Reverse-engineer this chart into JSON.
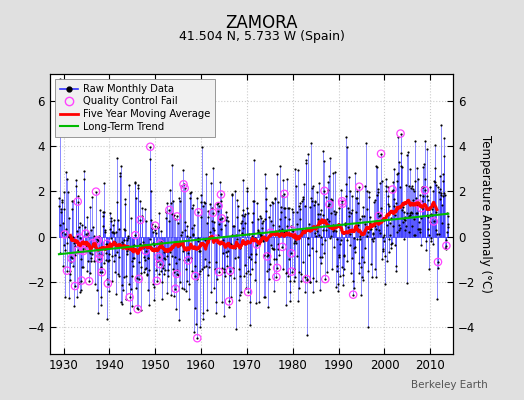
{
  "title": "ZAMORA",
  "subtitle": "41.504 N, 5.733 W (Spain)",
  "ylabel": "Temperature Anomaly (°C)",
  "xlim": [
    1927,
    2015
  ],
  "ylim": [
    -5.2,
    7.2
  ],
  "yticks": [
    -4,
    -2,
    0,
    2,
    4,
    6
  ],
  "xticks": [
    1930,
    1940,
    1950,
    1960,
    1970,
    1980,
    1990,
    2000,
    2010
  ],
  "year_start": 1929,
  "year_end": 2013,
  "bg_color": "#e0e0e0",
  "plot_bg_color": "#ffffff",
  "grid_color": "#cccccc",
  "raw_line_color": "#3333ff",
  "raw_marker_color": "#000000",
  "moving_avg_color": "#ff0000",
  "trend_color": "#00bb00",
  "qc_fail_color": "#ff44ff",
  "watermark": "Berkeley Earth",
  "seed": 137
}
